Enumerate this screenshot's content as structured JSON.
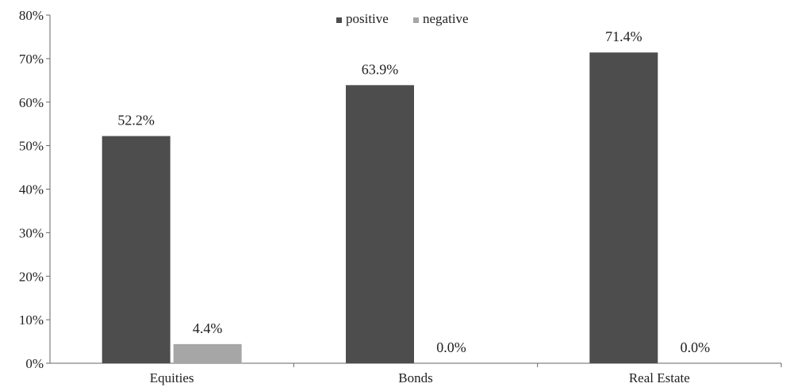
{
  "chart_data": {
    "type": "bar",
    "categories": [
      "Equities",
      "Bonds",
      "Real Estate"
    ],
    "series": [
      {
        "name": "positive",
        "values": [
          52.2,
          63.9,
          71.4
        ],
        "labels": [
          "52.2%",
          "63.9%",
          "71.4%"
        ],
        "color": "#4d4d4d"
      },
      {
        "name": "negative",
        "values": [
          4.4,
          0.0,
          0.0
        ],
        "labels": [
          "4.4%",
          "0.0%",
          "0.0%"
        ],
        "color": "#a6a6a6"
      }
    ],
    "ylim": [
      0,
      80
    ],
    "yticks": [
      0,
      10,
      20,
      30,
      40,
      50,
      60,
      70,
      80
    ],
    "ytick_labels": [
      "0%",
      "10%",
      "20%",
      "30%",
      "40%",
      "50%",
      "60%",
      "70%",
      "80%"
    ],
    "grid": false,
    "legend_position": "top-center"
  }
}
